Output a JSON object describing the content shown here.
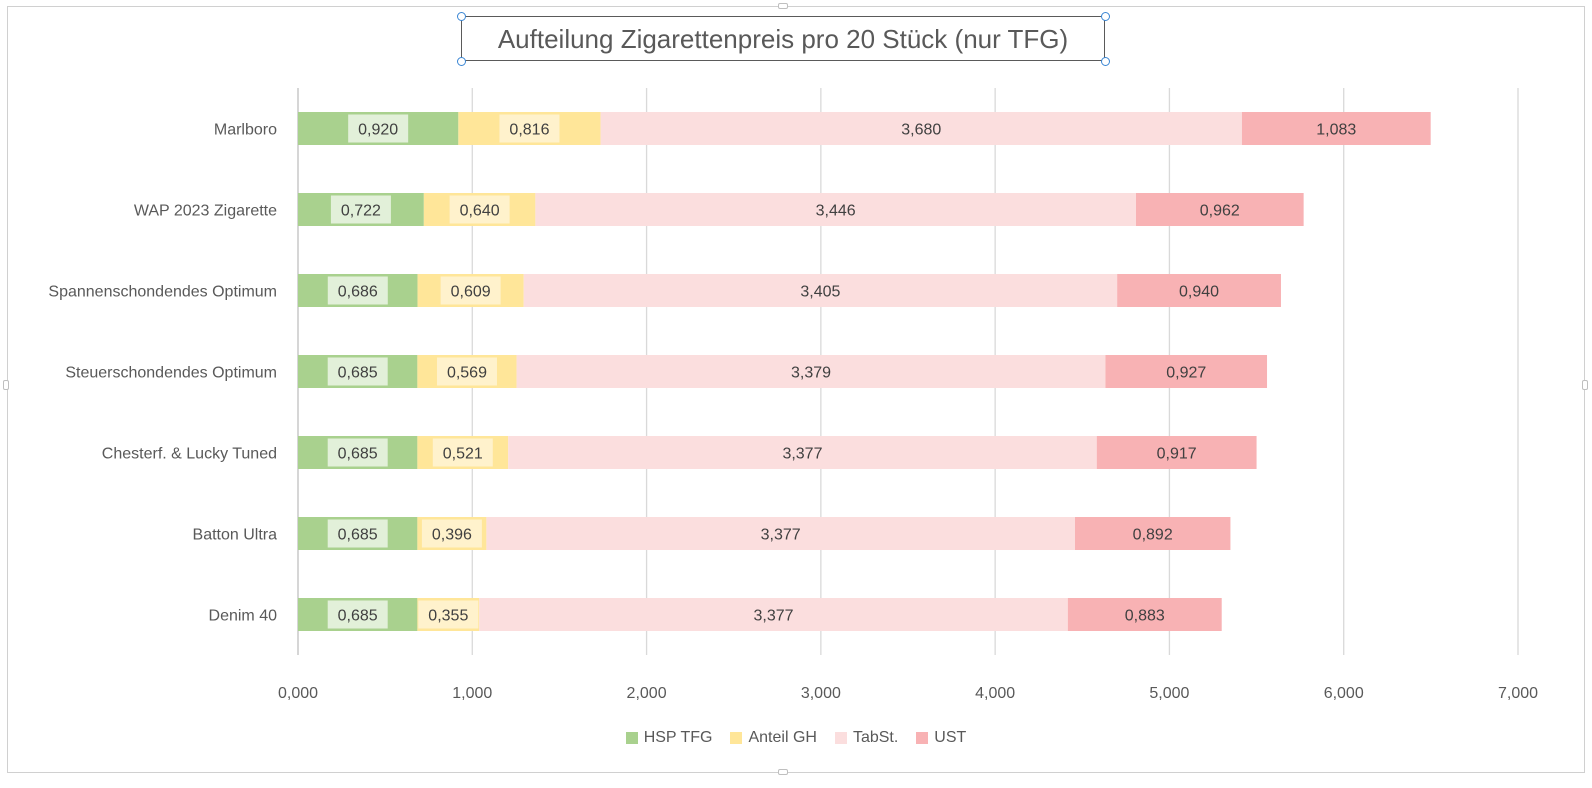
{
  "chart_data": {
    "type": "bar",
    "orientation": "horizontal",
    "stacked": true,
    "title": "Aufteilung  Zigarettenpreis pro 20 Stück (nur TFG)",
    "categories": [
      "Marlboro",
      "WAP 2023 Zigarette",
      "Spannenschondendes Optimum",
      "Steuerschondendes Optimum",
      "Chesterf. & Lucky Tuned ",
      "Batton Ultra",
      "Denim 40"
    ],
    "series": [
      {
        "name": "HSP TFG",
        "color": "#a9d18e",
        "label_bg": "#e2f0d9",
        "values": [
          0.92,
          0.722,
          0.686,
          0.685,
          0.685,
          0.685,
          0.685
        ],
        "labels": [
          "0,920",
          "0,722",
          "0,686",
          "0,685",
          "0,685",
          "0,685",
          "0,685"
        ]
      },
      {
        "name": "Anteil GH",
        "color": "#ffe699",
        "label_bg": "#fff2cc",
        "values": [
          0.816,
          0.64,
          0.609,
          0.569,
          0.521,
          0.396,
          0.355
        ],
        "labels": [
          "0,816",
          "0,640",
          "0,609",
          "0,569",
          "0,521",
          "0,396",
          "0,355"
        ]
      },
      {
        "name": "TabSt.",
        "color": "#fbdede",
        "label_bg": "#fbdede",
        "values": [
          3.68,
          3.446,
          3.405,
          3.379,
          3.377,
          3.377,
          3.377
        ],
        "labels": [
          "3,680",
          "3,446",
          "3,405",
          "3,379",
          "3,377",
          "3,377",
          "3,377"
        ]
      },
      {
        "name": "UST",
        "color": "#f8b2b4",
        "label_bg": "#f8b2b4",
        "values": [
          1.083,
          0.962,
          0.94,
          0.927,
          0.917,
          0.892,
          0.883
        ],
        "labels": [
          "1,083",
          "0,962",
          "0,940",
          "0,927",
          "0,917",
          "0,892",
          "0,883"
        ]
      }
    ],
    "xlim": [
      0,
      7
    ],
    "xticks": [
      0,
      1,
      2,
      3,
      4,
      5,
      6,
      7
    ],
    "xtick_labels": [
      "0,000",
      "1,000",
      "2,000",
      "3,000",
      "4,000",
      "5,000",
      "6,000",
      "7,000"
    ],
    "grid": "vertical",
    "legend": "bottom"
  }
}
